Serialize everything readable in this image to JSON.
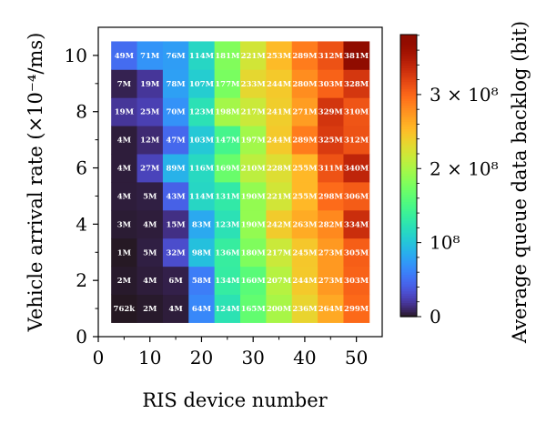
{
  "chart_data": {
    "type": "heatmap",
    "title": "",
    "xlabel": "RIS device number",
    "ylabel": "Vehicle arrival rate (×10⁻⁴/ms)",
    "x": [
      5,
      10,
      15,
      20,
      25,
      30,
      35,
      40,
      45,
      50
    ],
    "y": [
      1,
      2,
      3,
      4,
      5,
      6,
      7,
      8,
      9,
      10
    ],
    "xlim": [
      0,
      55
    ],
    "ylim": [
      0,
      11
    ],
    "xticks": [
      "0",
      "10",
      "20",
      "30",
      "40",
      "50"
    ],
    "yticks": [
      "0",
      "2",
      "4",
      "6",
      "8",
      "10"
    ],
    "values": [
      [
        0.762,
        2,
        4,
        64,
        124,
        165,
        200,
        236,
        264,
        299
      ],
      [
        2,
        4,
        6,
        58,
        134,
        160,
        207,
        244,
        273,
        303
      ],
      [
        1,
        5,
        32,
        98,
        136,
        180,
        217,
        245,
        273,
        305
      ],
      [
        3,
        4,
        15,
        83,
        123,
        190,
        242,
        263,
        282,
        334
      ],
      [
        4,
        5,
        43,
        114,
        131,
        190,
        221,
        255,
        298,
        306
      ],
      [
        4,
        27,
        89,
        116,
        169,
        210,
        228,
        255,
        311,
        340
      ],
      [
        4,
        12,
        47,
        103,
        147,
        197,
        244,
        289,
        325,
        312
      ],
      [
        19,
        25,
        70,
        123,
        198,
        217,
        241,
        271,
        329,
        310
      ],
      [
        7,
        19,
        78,
        107,
        177,
        233,
        244,
        280,
        303,
        328
      ],
      [
        49,
        71,
        76,
        114,
        181,
        221,
        253,
        289,
        312,
        381
      ]
    ],
    "value_unit": "million bits",
    "cell_labels": [
      [
        "762k",
        "2M",
        "4M",
        "64M",
        "124M",
        "165M",
        "200M",
        "236M",
        "264M",
        "299M"
      ],
      [
        "2M",
        "4M",
        "6M",
        "58M",
        "134M",
        "160M",
        "207M",
        "244M",
        "273M",
        "303M"
      ],
      [
        "1M",
        "5M",
        "32M",
        "98M",
        "136M",
        "180M",
        "217M",
        "245M",
        "273M",
        "305M"
      ],
      [
        "3M",
        "4M",
        "15M",
        "83M",
        "123M",
        "190M",
        "242M",
        "263M",
        "282M",
        "334M"
      ],
      [
        "4M",
        "5M",
        "43M",
        "114M",
        "131M",
        "190M",
        "221M",
        "255M",
        "298M",
        "306M"
      ],
      [
        "4M",
        "27M",
        "89M",
        "116M",
        "169M",
        "210M",
        "228M",
        "255M",
        "311M",
        "340M"
      ],
      [
        "4M",
        "12M",
        "47M",
        "103M",
        "147M",
        "197M",
        "244M",
        "289M",
        "325M",
        "312M"
      ],
      [
        "19M",
        "25M",
        "70M",
        "123M",
        "198M",
        "217M",
        "241M",
        "271M",
        "329M",
        "310M"
      ],
      [
        "7M",
        "19M",
        "78M",
        "107M",
        "177M",
        "233M",
        "244M",
        "280M",
        "303M",
        "328M"
      ],
      [
        "49M",
        "71M",
        "76M",
        "114M",
        "181M",
        "221M",
        "253M",
        "289M",
        "312M",
        "381M"
      ]
    ],
    "colorbar": {
      "label": "Average queue data backlog (bit)",
      "range": [
        0,
        381
      ],
      "ticks": [
        {
          "value": 0,
          "label": "0"
        },
        {
          "value": 100,
          "label": "10⁸"
        },
        {
          "value": 200,
          "label": "2 × 10⁸"
        },
        {
          "value": 300,
          "label": "3 × 10⁸"
        }
      ],
      "colormap": "turbo"
    },
    "grid": false,
    "legend": "colorbar-right"
  }
}
